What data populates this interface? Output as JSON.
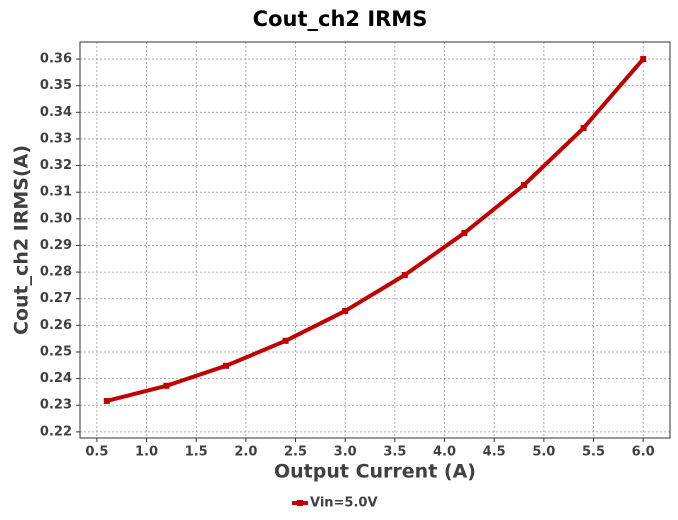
{
  "chart_data": {
    "type": "line",
    "title": "Cout_ch2 IRMS",
    "xlabel": "Output Current (A)",
    "ylabel": "Cout_ch2 IRMS(A)",
    "x": [
      0.6,
      1.2,
      1.8,
      2.4,
      3.0,
      3.6,
      4.2,
      4.8,
      5.4,
      6.0
    ],
    "series": [
      {
        "name": "Vin=5.0V",
        "color": "#c00000",
        "values": [
          0.2316,
          0.2373,
          0.2448,
          0.2542,
          0.2654,
          0.2789,
          0.2947,
          0.3127,
          0.3341,
          0.36
        ]
      }
    ],
    "xlim": [
      0.33,
      6.27
    ],
    "xticks": [
      0.5,
      {
        "value": 1,
        "label": "1.0"
      },
      1.5,
      {
        "value": 2,
        "label": "2.0"
      },
      2.5,
      {
        "value": 3,
        "label": "3.0"
      },
      3.5,
      {
        "value": 4,
        "label": "4.0"
      },
      4.5,
      {
        "value": 5,
        "label": "5.0"
      },
      5.5,
      {
        "value": 6,
        "label": "6.0"
      }
    ],
    "ylim": [
      0.2177,
      0.3664
    ],
    "yticks": [
      0.22,
      0.23,
      0.24,
      0.25,
      0.26,
      0.27,
      0.28,
      0.29,
      {
        "value": 0.3,
        "label": "0.30"
      },
      0.31,
      0.32,
      0.33,
      0.34,
      0.35,
      0.36
    ],
    "grid": true,
    "legend": "bottom"
  }
}
